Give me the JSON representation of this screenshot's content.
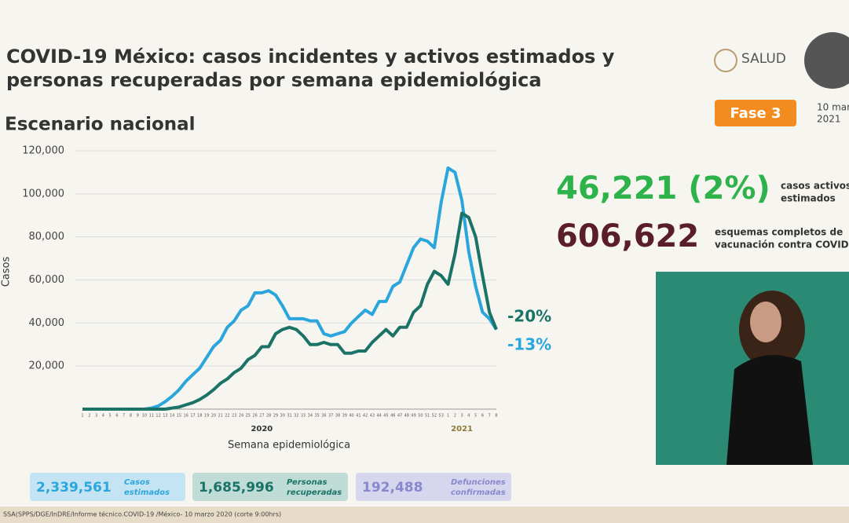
{
  "header": {
    "logo_text": "SALUD",
    "phase": "Fase 3",
    "date_line1": "10 mar",
    "date_line2": "2021"
  },
  "chart_data": {
    "type": "line",
    "title_line1": "COVID-19 México: casos incidentes y activos estimados y",
    "title_line2": "personas recuperadas por semana epidemiológica",
    "subtitle": "Escenario nacional",
    "y_label": "Casos",
    "x_label": "Semana epidemiológica",
    "categories": [
      "1",
      "2",
      "3",
      "4",
      "5",
      "6",
      "7",
      "8",
      "9",
      "10",
      "11",
      "12",
      "13",
      "14",
      "15",
      "16",
      "17",
      "18",
      "19",
      "20",
      "21",
      "22",
      "23",
      "24",
      "25",
      "26",
      "27",
      "28",
      "29",
      "30",
      "31",
      "32",
      "33",
      "34",
      "35",
      "36",
      "37",
      "38",
      "39",
      "40",
      "41",
      "42",
      "43",
      "44",
      "45",
      "46",
      "47",
      "48",
      "49",
      "50",
      "51",
      "52",
      "53",
      "1",
      "2",
      "3",
      "4",
      "5",
      "6",
      "7",
      "8"
    ],
    "x_groups": [
      {
        "label": "2020",
        "from": 0,
        "to": 52
      },
      {
        "label": "2021",
        "from": 53,
        "to": 60
      }
    ],
    "ylim": [
      0,
      120000
    ],
    "yticks": [
      {
        "value": 20000,
        "label": "20,000"
      },
      {
        "value": 40000,
        "label": "40,000"
      },
      {
        "value": 60000,
        "label": "60,000"
      },
      {
        "value": 80000,
        "label": "80,000"
      },
      {
        "value": 100000,
        "label": "100,000"
      },
      {
        "value": 120000,
        "label": "120,000"
      }
    ],
    "grid": true,
    "series": [
      {
        "color": "#2aa6dc",
        "values": [
          0,
          0,
          0,
          0,
          0,
          0,
          0,
          0,
          0,
          0,
          500,
          1500,
          3500,
          6000,
          9000,
          13000,
          16000,
          19000,
          24000,
          29000,
          32000,
          38000,
          41000,
          46000,
          48000,
          54000,
          54000,
          55000,
          53000,
          48000,
          42000,
          42000,
          42000,
          41000,
          41000,
          35000,
          34000,
          35000,
          36000,
          40000,
          43000,
          46000,
          44000,
          50000,
          50000,
          57000,
          59000,
          67000,
          75000,
          79000,
          78000,
          75000,
          96000,
          112000,
          110000,
          97000,
          73000,
          57000,
          45000,
          42000,
          37000
        ]
      },
      {
        "color": "#1a7366",
        "values": [
          0,
          0,
          0,
          0,
          0,
          0,
          0,
          0,
          0,
          0,
          0,
          0,
          0,
          500,
          1000,
          2000,
          3000,
          4500,
          6500,
          9000,
          12000,
          14000,
          17000,
          19000,
          23000,
          25000,
          29000,
          29000,
          35000,
          37000,
          38000,
          37000,
          34000,
          30000,
          30000,
          31000,
          30000,
          30000,
          26000,
          26000,
          27000,
          27000,
          31000,
          34000,
          37000,
          34000,
          38000,
          38000,
          45000,
          48000,
          58000,
          64000,
          62000,
          58000,
          72000,
          91000,
          89000,
          80000,
          62000,
          45000,
          37000
        ]
      }
    ],
    "annotations": [
      {
        "text": "-20%",
        "color": "#1a7366"
      },
      {
        "text": "-13%",
        "color": "#2aa6dc"
      }
    ]
  },
  "summary": {
    "active": "46,221 (2%)",
    "active_label1": "casos activos",
    "active_label2": "estimados",
    "vaccination": "606,622",
    "vaccination_label1": "esquemas completos de",
    "vaccination_label2": "vacunación contra COVID"
  },
  "totals": [
    {
      "value": "2,339,561",
      "label1": "Casos",
      "label2": "estimados"
    },
    {
      "value": "1,685,996",
      "label1": "Personas",
      "label2": "recuperadas"
    },
    {
      "value": "192,488",
      "label1": "Defunciones",
      "label2": "confirmadas"
    }
  ],
  "footer": "SSA(SPPS/DGE/InDRE/Informe técnico.COVID-19 /México- 10 marzo 2020 (corte 9:00hrs)"
}
